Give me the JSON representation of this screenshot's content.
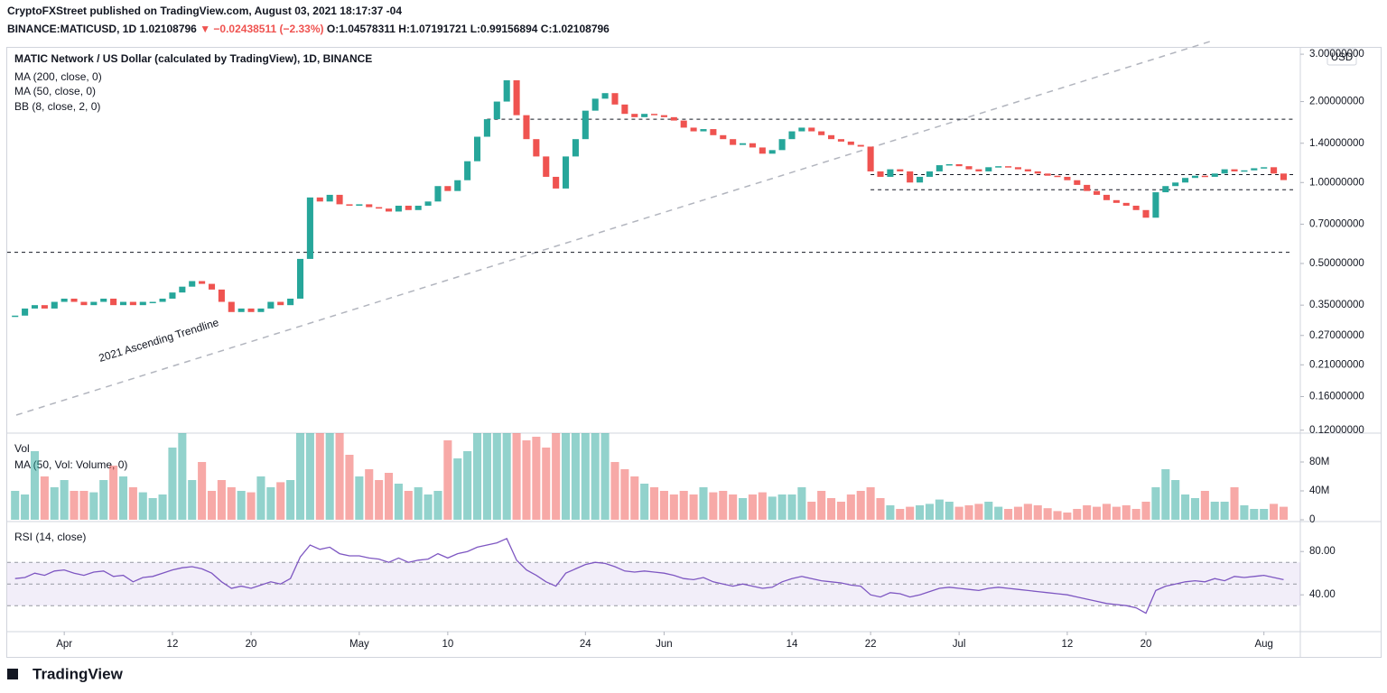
{
  "header": {
    "publisher": "CryptoFXStreet published on TradingView.com, August 03, 2021 18:17:37 -04",
    "symbol": "BINANCE:MATICUSD, 1D",
    "last": "1.02108796",
    "change": "▼ −0.02438511 (−2.33%)",
    "ohlc": [
      "O:1.04578311",
      "H:1.07191721",
      "L:0.99156894",
      "C:1.02108796"
    ]
  },
  "chart_data": {
    "type": "candlestick",
    "title": "MATIC Network / US Dollar (calculated by TradingView), 1D, BINANCE",
    "legend": [
      "MA (200, close, 0)",
      "MA (50, close, 0)",
      "BB (8, close, 2, 0)"
    ],
    "currency": "USD",
    "annotation": "2021 Ascending Trendline",
    "log_scale": true,
    "up_color": "#26a69a",
    "down_color": "#ef5350",
    "close": [
      0.32,
      0.34,
      0.35,
      0.34,
      0.36,
      0.37,
      0.36,
      0.35,
      0.36,
      0.37,
      0.35,
      0.36,
      0.35,
      0.36,
      0.36,
      0.37,
      0.39,
      0.41,
      0.43,
      0.42,
      0.4,
      0.36,
      0.33,
      0.34,
      0.33,
      0.34,
      0.36,
      0.35,
      0.37,
      0.52,
      0.88,
      0.85,
      0.9,
      0.83,
      0.82,
      0.83,
      0.81,
      0.8,
      0.78,
      0.82,
      0.79,
      0.82,
      0.85,
      0.97,
      0.93,
      1.02,
      1.2,
      1.48,
      1.72,
      2.0,
      2.4,
      1.78,
      1.45,
      1.25,
      1.05,
      0.95,
      1.25,
      1.45,
      1.85,
      2.05,
      2.15,
      1.95,
      1.8,
      1.75,
      1.8,
      1.78,
      1.75,
      1.7,
      1.6,
      1.55,
      1.58,
      1.5,
      1.45,
      1.38,
      1.4,
      1.35,
      1.28,
      1.32,
      1.45,
      1.55,
      1.6,
      1.55,
      1.5,
      1.45,
      1.42,
      1.38,
      1.36,
      1.1,
      1.05,
      1.12,
      1.1,
      1.0,
      1.05,
      1.1,
      1.16,
      1.17,
      1.15,
      1.12,
      1.1,
      1.14,
      1.15,
      1.14,
      1.12,
      1.1,
      1.08,
      1.06,
      1.05,
      1.02,
      0.98,
      0.93,
      0.9,
      0.86,
      0.84,
      0.82,
      0.79,
      0.74,
      0.92,
      0.97,
      1.0,
      1.04,
      1.06,
      1.05,
      1.08,
      1.12,
      1.1,
      1.11,
      1.13,
      1.14,
      1.08,
      1.021
    ],
    "ylim": [
      0.117,
      3.12
    ],
    "yticks": [
      {
        "value": 3.0,
        "label": "3.00000000"
      },
      {
        "value": 2.0,
        "label": "2.00000000"
      },
      {
        "value": 1.4,
        "label": "1.40000000"
      },
      {
        "value": 1.0,
        "label": "1.00000000"
      },
      {
        "value": 0.7,
        "label": "0.70000000"
      },
      {
        "value": 0.5,
        "label": "0.50000000"
      },
      {
        "value": 0.35,
        "label": "0.35000000"
      },
      {
        "value": 0.27,
        "label": "0.27000000"
      },
      {
        "value": 0.21,
        "label": "0.21000000"
      },
      {
        "value": 0.16,
        "label": "0.16000000"
      },
      {
        "value": 0.12,
        "label": "0.12000000"
      }
    ],
    "levels": [
      0.55,
      1.72,
      1.07,
      0.94
    ],
    "xlim": [
      -0.8,
      130.7
    ],
    "xticks": [
      {
        "value": 5,
        "label": "Apr"
      },
      {
        "value": 16,
        "label": "12"
      },
      {
        "value": 24,
        "label": "20"
      },
      {
        "value": 35,
        "label": "May"
      },
      {
        "value": 44,
        "label": "10"
      },
      {
        "value": 58,
        "label": "24"
      },
      {
        "value": 66,
        "label": "Jun"
      },
      {
        "value": 79,
        "label": "14"
      },
      {
        "value": 87,
        "label": "22"
      },
      {
        "value": 96,
        "label": "Jul"
      },
      {
        "value": 107,
        "label": "12"
      },
      {
        "value": 115,
        "label": "20"
      },
      {
        "value": 127,
        "label": "Aug"
      }
    ],
    "volume_title": "Vol",
    "volume_legend": "MA (50, Vol: Volume, 0)",
    "volume": [
      40000000.0,
      35000000.0,
      95000000.0,
      60000000.0,
      45000000.0,
      55000000.0,
      40000000.0,
      40000000.0,
      38000000.0,
      55000000.0,
      75000000.0,
      60000000.0,
      45000000.0,
      38000000.0,
      30000000.0,
      35000000.0,
      100000000.0,
      140000000.0,
      55000000.0,
      80000000.0,
      40000000.0,
      55000000.0,
      45000000.0,
      40000000.0,
      38000000.0,
      60000000.0,
      45000000.0,
      52000000.0,
      55000000.0,
      150000000.0,
      160000000.0,
      130000000.0,
      120000000.0,
      150000000.0,
      90000000.0,
      60000000.0,
      70000000.0,
      55000000.0,
      65000000.0,
      50000000.0,
      40000000.0,
      45000000.0,
      35000000.0,
      40000000.0,
      110000000.0,
      85000000.0,
      95000000.0,
      150000000.0,
      125000000.0,
      160000000.0,
      220000000.0,
      180000000.0,
      110000000.0,
      115000000.0,
      100000000.0,
      120000000.0,
      140000000.0,
      150000000.0,
      170000000.0,
      140000000.0,
      120000000.0,
      80000000.0,
      70000000.0,
      60000000.0,
      50000000.0,
      45000000.0,
      40000000.0,
      35000000.0,
      40000000.0,
      35000000.0,
      45000000.0,
      38000000.0,
      40000000.0,
      35000000.0,
      30000000.0,
      35000000.0,
      38000000.0,
      32000000.0,
      35000000.0,
      35000000.0,
      45000000.0,
      25000000.0,
      40000000.0,
      30000000.0,
      25000000.0,
      35000000.0,
      40000000.0,
      45000000.0,
      30000000.0,
      20000000.0,
      15000000.0,
      18000000.0,
      20000000.0,
      22000000.0,
      28000000.0,
      25000000.0,
      18000000.0,
      20000000.0,
      22000000.0,
      25000000.0,
      18000000.0,
      15000000.0,
      18000000.0,
      22000000.0,
      20000000.0,
      16000000.0,
      12000000.0,
      10000000.0,
      15000000.0,
      20000000.0,
      18000000.0,
      22000000.0,
      18000000.0,
      20000000.0,
      15000000.0,
      25000000.0,
      45000000.0,
      70000000.0,
      55000000.0,
      35000000.0,
      30000000.0,
      40000000.0,
      25000000.0,
      25000000.0,
      45000000.0,
      20000000.0,
      15000000.0,
      15000000.0,
      22000000.0,
      18000000.0
    ],
    "volume_ylim": [
      0,
      120000000.0
    ],
    "volume_yticks": [
      {
        "value": 80000000,
        "label": "80M"
      },
      {
        "value": 40000000,
        "label": "40M"
      },
      0
    ],
    "rsi_title": "RSI (14, close)",
    "rsi_color": "#7e57c2",
    "rsi": [
      55,
      56,
      60,
      58,
      62,
      63,
      60,
      58,
      61,
      62,
      57,
      58,
      52,
      56,
      57,
      60,
      63,
      65,
      66,
      64,
      60,
      52,
      46,
      48,
      46,
      49,
      52,
      50,
      55,
      75,
      86,
      82,
      84,
      78,
      76,
      76,
      74,
      73,
      70,
      74,
      70,
      72,
      73,
      78,
      74,
      78,
      80,
      84,
      86,
      88,
      92,
      72,
      63,
      58,
      52,
      48,
      60,
      64,
      68,
      70,
      69,
      66,
      62,
      61,
      62,
      61,
      60,
      58,
      55,
      54,
      56,
      52,
      50,
      48,
      50,
      48,
      46,
      47,
      52,
      55,
      57,
      55,
      53,
      52,
      51,
      49,
      48,
      40,
      38,
      42,
      41,
      38,
      40,
      43,
      46,
      47,
      46,
      45,
      44,
      46,
      47,
      46,
      45,
      44,
      43,
      42,
      41,
      40,
      38,
      36,
      34,
      32,
      31,
      30,
      28,
      23,
      44,
      48,
      50,
      52,
      53,
      52,
      55,
      53,
      57,
      56,
      57,
      58,
      56,
      54
    ],
    "rsi_ylim": [
      6,
      106
    ],
    "rsi_yticks": [
      {
        "value": 80,
        "label": "80.00"
      },
      {
        "value": 40,
        "label": "40.00"
      }
    ],
    "rsi_bands": [
      70,
      50,
      30
    ]
  },
  "footer": {
    "brand": "TradingView"
  }
}
